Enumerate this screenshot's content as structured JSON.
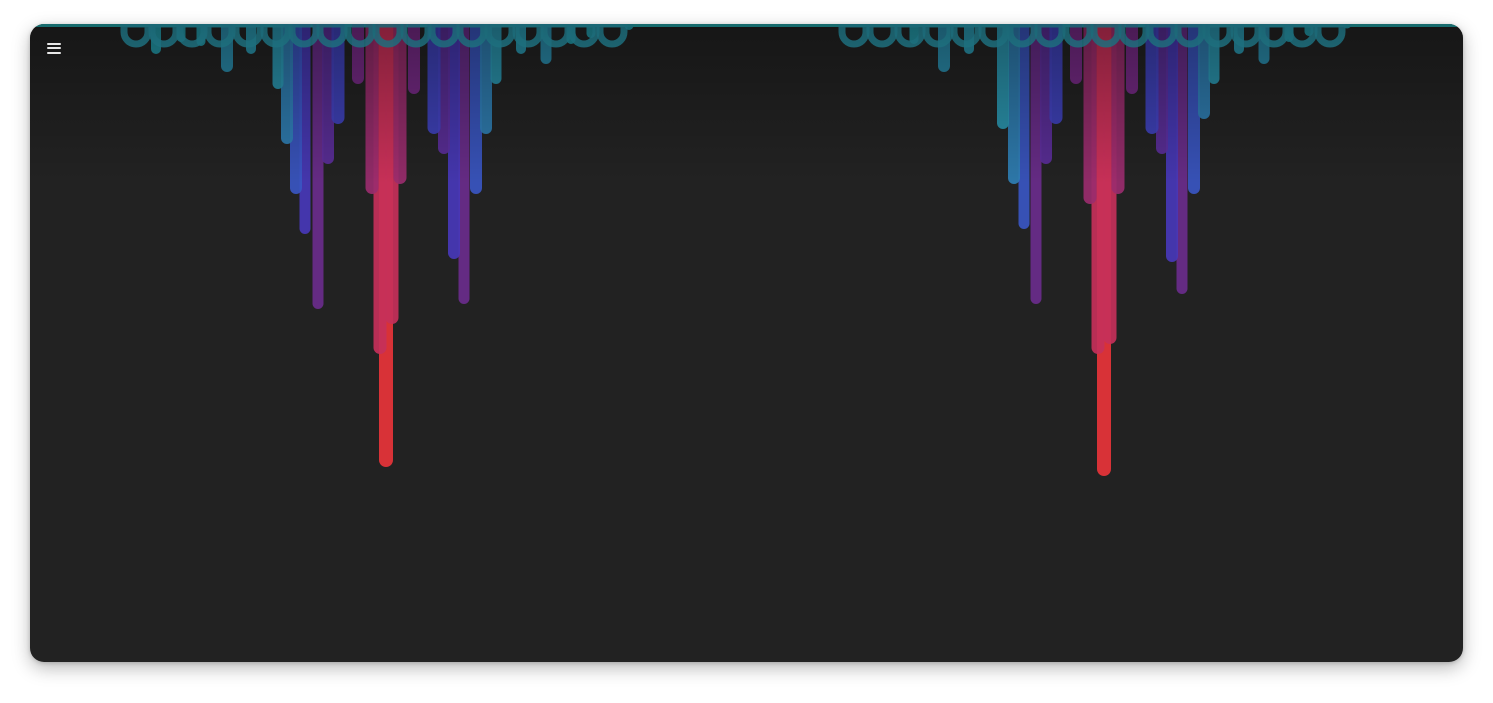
{
  "app": {
    "menu_icon": "hamburger-menu-icon",
    "background_color": "#222222",
    "accent_color": "#25a5a8"
  },
  "visualizer": {
    "palette": {
      "shallow": "#2a9fb4",
      "mid": "#4634c4",
      "deep": "#e8343a"
    },
    "groups": [
      {
        "name": "left",
        "icicles": [
          {
            "offset": -230,
            "depth": 30,
            "width": 10,
            "color": "#24a0b0"
          },
          {
            "offset": -205,
            "depth": 18,
            "width": 9,
            "color": "#24a0b0"
          },
          {
            "offset": -185,
            "depth": 22,
            "width": 9,
            "color": "#24a0b0"
          },
          {
            "offset": -159,
            "depth": 48,
            "width": 12,
            "color": "#2a8fb0"
          },
          {
            "offset": -135,
            "depth": 30,
            "width": 10,
            "color": "#2a9bb4"
          },
          {
            "offset": -108,
            "depth": 65,
            "width": 11,
            "color": "#2a98b2"
          },
          {
            "offset": -99,
            "depth": 120,
            "width": 12,
            "color": "#2f7fb4"
          },
          {
            "offset": -90,
            "depth": 170,
            "width": 12,
            "color": "#3a56c2"
          },
          {
            "offset": -81,
            "depth": 210,
            "width": 11,
            "color": "#4838b8"
          },
          {
            "offset": -68,
            "depth": 285,
            "width": 11,
            "color": "#6a2c8c"
          },
          {
            "offset": -58,
            "depth": 140,
            "width": 12,
            "color": "#5b2e9a"
          },
          {
            "offset": -48,
            "depth": 100,
            "width": 13,
            "color": "#3f42be"
          },
          {
            "offset": -28,
            "depth": 60,
            "width": 12,
            "color": "#7a2a8a"
          },
          {
            "offset": -14,
            "depth": 170,
            "width": 13,
            "color": "#9a2d6e"
          },
          {
            "offset": -6,
            "depth": 330,
            "width": 13,
            "color": "#c6305a"
          },
          {
            "offset": 0,
            "depth": 443,
            "width": 14,
            "color": "#e8343a"
          },
          {
            "offset": 6,
            "depth": 300,
            "width": 13,
            "color": "#c6305a"
          },
          {
            "offset": 14,
            "depth": 160,
            "width": 13,
            "color": "#9a2d6e"
          },
          {
            "offset": 28,
            "depth": 70,
            "width": 12,
            "color": "#7a2a8a"
          },
          {
            "offset": 48,
            "depth": 110,
            "width": 13,
            "color": "#3f42be"
          },
          {
            "offset": 58,
            "depth": 130,
            "width": 12,
            "color": "#5b2e9a"
          },
          {
            "offset": 68,
            "depth": 235,
            "width": 12,
            "color": "#4838b8"
          },
          {
            "offset": 78,
            "depth": 280,
            "width": 11,
            "color": "#6a2c8c"
          },
          {
            "offset": 90,
            "depth": 170,
            "width": 12,
            "color": "#3a56c2"
          },
          {
            "offset": 100,
            "depth": 110,
            "width": 12,
            "color": "#2f7fb4"
          },
          {
            "offset": 110,
            "depth": 60,
            "width": 11,
            "color": "#2a98b2"
          },
          {
            "offset": 135,
            "depth": 30,
            "width": 10,
            "color": "#2a9bb4"
          },
          {
            "offset": 160,
            "depth": 40,
            "width": 11,
            "color": "#2a8fb0"
          },
          {
            "offset": 185,
            "depth": 20,
            "width": 9,
            "color": "#24a0b0"
          },
          {
            "offset": 205,
            "depth": 14,
            "width": 9,
            "color": "#24a0b0"
          },
          {
            "offset": 243,
            "depth": 6,
            "width": 9,
            "color": "#24a0b0"
          }
        ]
      },
      {
        "name": "right",
        "icicles": [
          {
            "offset": -190,
            "depth": 20,
            "width": 9,
            "color": "#24a0b0"
          },
          {
            "offset": -160,
            "depth": 48,
            "width": 12,
            "color": "#2a8fb0"
          },
          {
            "offset": -135,
            "depth": 30,
            "width": 10,
            "color": "#2a9bb4"
          },
          {
            "offset": -101,
            "depth": 105,
            "width": 12,
            "color": "#2a98b2"
          },
          {
            "offset": -90,
            "depth": 160,
            "width": 12,
            "color": "#2f7fb4"
          },
          {
            "offset": -80,
            "depth": 205,
            "width": 11,
            "color": "#3a56c2"
          },
          {
            "offset": -68,
            "depth": 280,
            "width": 11,
            "color": "#6a2c8c"
          },
          {
            "offset": -58,
            "depth": 140,
            "width": 12,
            "color": "#5b2e9a"
          },
          {
            "offset": -48,
            "depth": 100,
            "width": 13,
            "color": "#3f42be"
          },
          {
            "offset": -28,
            "depth": 60,
            "width": 12,
            "color": "#7a2a8a"
          },
          {
            "offset": -14,
            "depth": 180,
            "width": 13,
            "color": "#9a2d6e"
          },
          {
            "offset": -6,
            "depth": 330,
            "width": 13,
            "color": "#c6305a"
          },
          {
            "offset": 0,
            "depth": 452,
            "width": 14,
            "color": "#e8343a"
          },
          {
            "offset": 6,
            "depth": 320,
            "width": 13,
            "color": "#c6305a"
          },
          {
            "offset": 14,
            "depth": 170,
            "width": 13,
            "color": "#9a2d6e"
          },
          {
            "offset": 28,
            "depth": 70,
            "width": 12,
            "color": "#7a2a8a"
          },
          {
            "offset": 48,
            "depth": 110,
            "width": 13,
            "color": "#3f42be"
          },
          {
            "offset": 58,
            "depth": 130,
            "width": 12,
            "color": "#5b2e9a"
          },
          {
            "offset": 68,
            "depth": 238,
            "width": 12,
            "color": "#4838b8"
          },
          {
            "offset": 78,
            "depth": 270,
            "width": 11,
            "color": "#6a2c8c"
          },
          {
            "offset": 90,
            "depth": 170,
            "width": 12,
            "color": "#3a56c2"
          },
          {
            "offset": 100,
            "depth": 95,
            "width": 12,
            "color": "#2f7fb4"
          },
          {
            "offset": 110,
            "depth": 60,
            "width": 11,
            "color": "#2a98b2"
          },
          {
            "offset": 135,
            "depth": 30,
            "width": 10,
            "color": "#2a9bb4"
          },
          {
            "offset": 160,
            "depth": 40,
            "width": 11,
            "color": "#2a8fb0"
          },
          {
            "offset": 185,
            "depth": 18,
            "width": 9,
            "color": "#24a0b0"
          },
          {
            "offset": 205,
            "depth": 12,
            "width": 9,
            "color": "#24a0b0"
          },
          {
            "offset": 243,
            "depth": 4,
            "width": 9,
            "color": "#24a0b0"
          }
        ]
      }
    ]
  }
}
